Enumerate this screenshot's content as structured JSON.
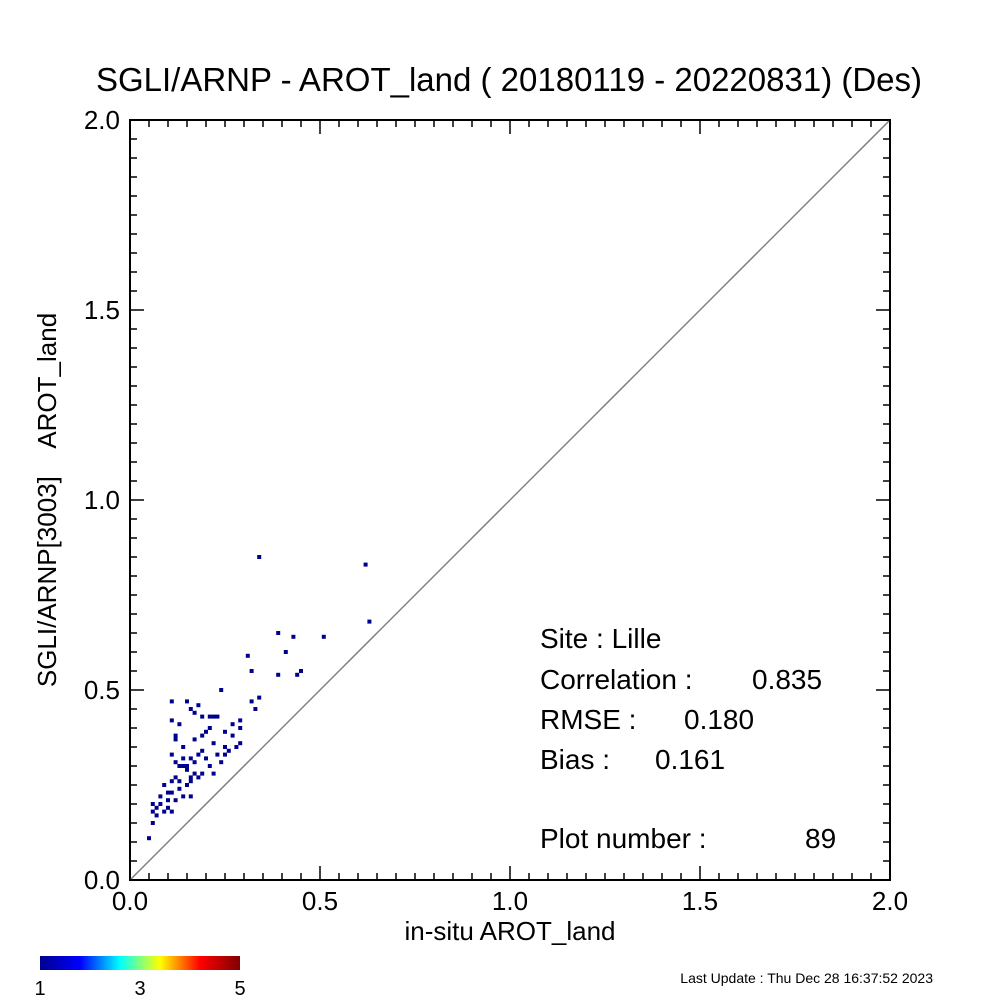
{
  "chart_data": {
    "type": "scatter",
    "title": "SGLI/ARNP - AROT_land ( 20180119 - 20220831) (Des)",
    "xlabel": "in-situ AROT_land",
    "ylabel": "SGLI/ARNP[3003]    AROT_land",
    "xlim": [
      0.0,
      2.0
    ],
    "ylim": [
      0.0,
      2.0
    ],
    "xticks": [
      "0.0",
      "0.5",
      "1.0",
      "1.5",
      "2.0"
    ],
    "yticks": [
      "0.0",
      "0.5",
      "1.0",
      "1.5",
      "2.0"
    ],
    "grid": false,
    "one_to_one_line": true,
    "point_color": "#00008f",
    "line_color": "#808080",
    "points": [
      {
        "x": 0.34,
        "y": 0.85
      },
      {
        "x": 0.62,
        "y": 0.83
      },
      {
        "x": 0.63,
        "y": 0.68
      },
      {
        "x": 0.39,
        "y": 0.65
      },
      {
        "x": 0.43,
        "y": 0.64
      },
      {
        "x": 0.51,
        "y": 0.64
      },
      {
        "x": 0.41,
        "y": 0.6
      },
      {
        "x": 0.31,
        "y": 0.59
      },
      {
        "x": 0.32,
        "y": 0.55
      },
      {
        "x": 0.45,
        "y": 0.55
      },
      {
        "x": 0.44,
        "y": 0.54
      },
      {
        "x": 0.39,
        "y": 0.54
      },
      {
        "x": 0.24,
        "y": 0.5
      },
      {
        "x": 0.34,
        "y": 0.48
      },
      {
        "x": 0.32,
        "y": 0.47
      },
      {
        "x": 0.11,
        "y": 0.47
      },
      {
        "x": 0.15,
        "y": 0.47
      },
      {
        "x": 0.16,
        "y": 0.45
      },
      {
        "x": 0.18,
        "y": 0.46
      },
      {
        "x": 0.17,
        "y": 0.44
      },
      {
        "x": 0.33,
        "y": 0.45
      },
      {
        "x": 0.19,
        "y": 0.43
      },
      {
        "x": 0.21,
        "y": 0.43
      },
      {
        "x": 0.22,
        "y": 0.43
      },
      {
        "x": 0.23,
        "y": 0.43
      },
      {
        "x": 0.11,
        "y": 0.42
      },
      {
        "x": 0.29,
        "y": 0.42
      },
      {
        "x": 0.27,
        "y": 0.41
      },
      {
        "x": 0.13,
        "y": 0.41
      },
      {
        "x": 0.29,
        "y": 0.4
      },
      {
        "x": 0.21,
        "y": 0.4
      },
      {
        "x": 0.25,
        "y": 0.39
      },
      {
        "x": 0.19,
        "y": 0.38
      },
      {
        "x": 0.12,
        "y": 0.38
      },
      {
        "x": 0.12,
        "y": 0.37
      },
      {
        "x": 0.29,
        "y": 0.36
      },
      {
        "x": 0.22,
        "y": 0.36
      },
      {
        "x": 0.25,
        "y": 0.35
      },
      {
        "x": 0.28,
        "y": 0.35
      },
      {
        "x": 0.26,
        "y": 0.34
      },
      {
        "x": 0.19,
        "y": 0.34
      },
      {
        "x": 0.25,
        "y": 0.33
      },
      {
        "x": 0.23,
        "y": 0.33
      },
      {
        "x": 0.11,
        "y": 0.33
      },
      {
        "x": 0.14,
        "y": 0.32
      },
      {
        "x": 0.16,
        "y": 0.32
      },
      {
        "x": 0.2,
        "y": 0.32
      },
      {
        "x": 0.17,
        "y": 0.31
      },
      {
        "x": 0.14,
        "y": 0.3
      },
      {
        "x": 0.21,
        "y": 0.3
      },
      {
        "x": 0.13,
        "y": 0.3
      },
      {
        "x": 0.15,
        "y": 0.29
      },
      {
        "x": 0.17,
        "y": 0.28
      },
      {
        "x": 0.19,
        "y": 0.28
      },
      {
        "x": 0.22,
        "y": 0.28
      },
      {
        "x": 0.12,
        "y": 0.27
      },
      {
        "x": 0.16,
        "y": 0.27
      },
      {
        "x": 0.18,
        "y": 0.27
      },
      {
        "x": 0.11,
        "y": 0.26
      },
      {
        "x": 0.09,
        "y": 0.25
      },
      {
        "x": 0.16,
        "y": 0.26
      },
      {
        "x": 0.15,
        "y": 0.25
      },
      {
        "x": 0.13,
        "y": 0.24
      },
      {
        "x": 0.1,
        "y": 0.23
      },
      {
        "x": 0.11,
        "y": 0.23
      },
      {
        "x": 0.08,
        "y": 0.22
      },
      {
        "x": 0.16,
        "y": 0.22
      },
      {
        "x": 0.14,
        "y": 0.22
      },
      {
        "x": 0.12,
        "y": 0.21
      },
      {
        "x": 0.08,
        "y": 0.2
      },
      {
        "x": 0.06,
        "y": 0.2
      },
      {
        "x": 0.07,
        "y": 0.19
      },
      {
        "x": 0.1,
        "y": 0.19
      },
      {
        "x": 0.06,
        "y": 0.18
      },
      {
        "x": 0.09,
        "y": 0.18
      },
      {
        "x": 0.11,
        "y": 0.18
      },
      {
        "x": 0.07,
        "y": 0.17
      },
      {
        "x": 0.06,
        "y": 0.15
      },
      {
        "x": 0.05,
        "y": 0.11
      },
      {
        "x": 0.12,
        "y": 0.31
      },
      {
        "x": 0.15,
        "y": 0.3
      },
      {
        "x": 0.18,
        "y": 0.33
      },
      {
        "x": 0.2,
        "y": 0.39
      },
      {
        "x": 0.24,
        "y": 0.31
      },
      {
        "x": 0.13,
        "y": 0.26
      },
      {
        "x": 0.1,
        "y": 0.21
      },
      {
        "x": 0.14,
        "y": 0.35
      },
      {
        "x": 0.17,
        "y": 0.37
      },
      {
        "x": 0.27,
        "y": 0.38
      }
    ],
    "annotations": {
      "site": "Site : Lille",
      "correlation_label": "Correlation :",
      "correlation_value": "0.835",
      "rmse_label": "RMSE :",
      "rmse_value": "0.180",
      "bias_label": "Bias :",
      "bias_value": "0.161",
      "plot_number_label": "Plot number :",
      "plot_number_value": "89"
    },
    "colorbar": {
      "ticks": [
        "1",
        "3",
        "5"
      ],
      "colors": [
        "#00008f",
        "#0000ff",
        "#00ffff",
        "#ffff00",
        "#ff0000",
        "#800000"
      ]
    }
  },
  "footer": {
    "last_update": "Last Update : Thu Dec 28 16:37:52 2023"
  }
}
